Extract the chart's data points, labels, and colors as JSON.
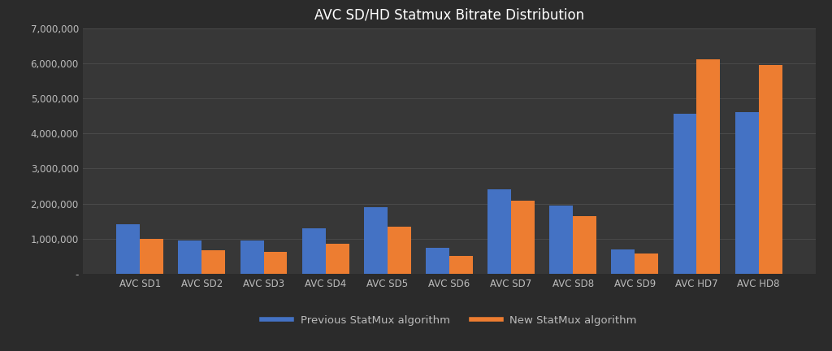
{
  "title": "AVC SD/HD Statmux Bitrate Distribution",
  "categories": [
    "AVC SD1",
    "AVC SD2",
    "AVC SD3",
    "AVC SD4",
    "AVC SD5",
    "AVC SD6",
    "AVC SD7",
    "AVC SD8",
    "AVC SD9",
    "AVC HD7",
    "AVC HD8"
  ],
  "previous": [
    1400000,
    950000,
    950000,
    1300000,
    1900000,
    750000,
    2400000,
    1950000,
    700000,
    4550000,
    4600000
  ],
  "new": [
    1000000,
    680000,
    620000,
    850000,
    1350000,
    500000,
    2080000,
    1650000,
    580000,
    6100000,
    5950000
  ],
  "legend_previous": "Previous StatMux algorithm",
  "legend_new": "New StatMux algorithm",
  "color_previous": "#4472C4",
  "color_new": "#ED7D31",
  "background_color": "#2B2B2B",
  "axes_background": "#373737",
  "text_color": "#BBBBBB",
  "grid_color": "#4A4A4A",
  "title_color": "#FFFFFF",
  "ylim": [
    0,
    7000000
  ],
  "yticks": [
    0,
    1000000,
    2000000,
    3000000,
    4000000,
    5000000,
    6000000,
    7000000
  ],
  "ytick_labels": [
    "-",
    "1,000,000",
    "2,000,000",
    "3,000,000",
    "4,000,000",
    "5,000,000",
    "6,000,000",
    "7,000,000"
  ],
  "bar_width": 0.38
}
